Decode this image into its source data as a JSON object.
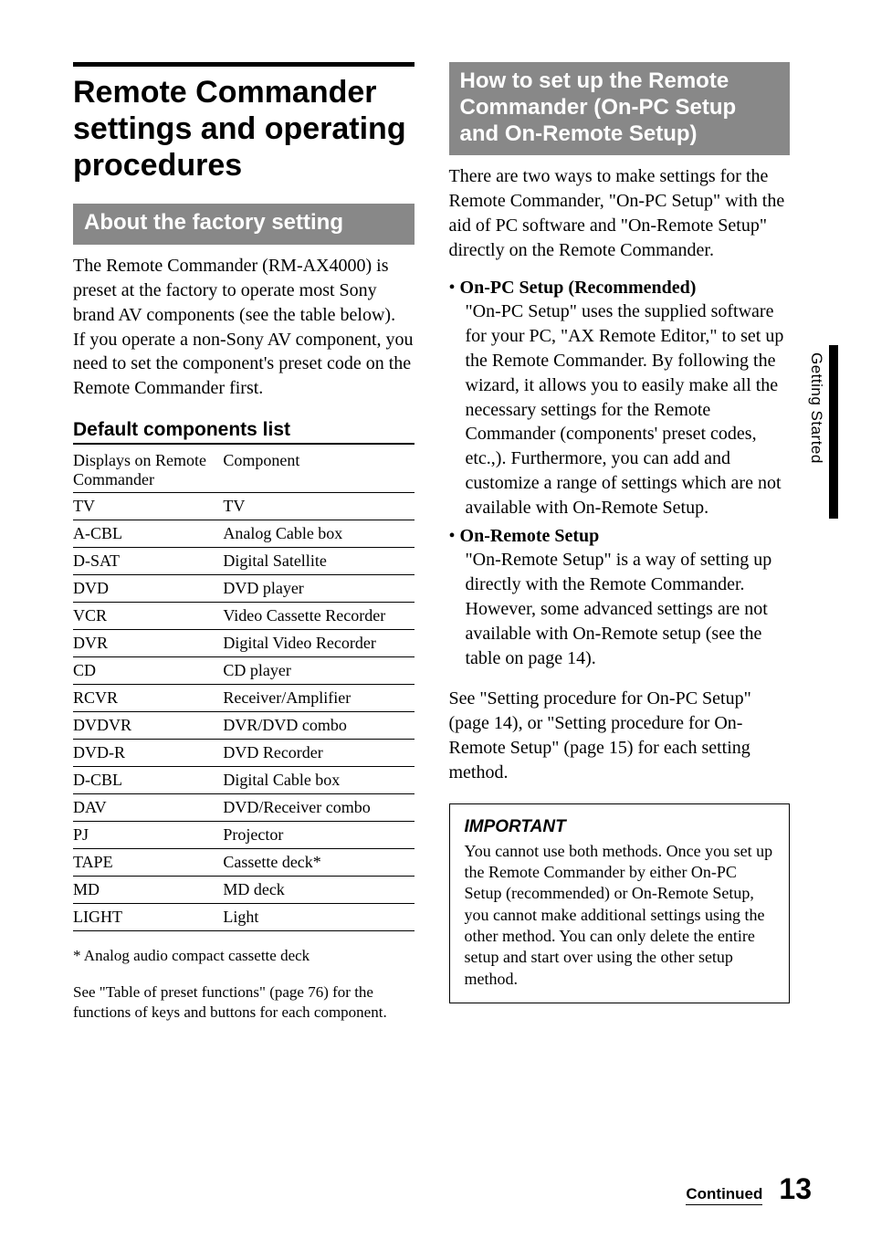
{
  "left": {
    "main_title": "Remote Commander settings and operating procedures",
    "factory_heading": "About the factory setting",
    "factory_body": "The Remote Commander (RM-AX4000) is preset at the factory to operate most Sony brand AV components (see the table below).\nIf you operate a non-Sony AV component, you need to set the component's preset code on the Remote Commander first.",
    "default_list_heading": "Default components list",
    "table_header_left": "Displays on Remote Commander",
    "table_header_right": "Component",
    "rows": [
      [
        "TV",
        "TV"
      ],
      [
        "A-CBL",
        "Analog Cable box"
      ],
      [
        "D-SAT",
        "Digital Satellite"
      ],
      [
        "DVD",
        "DVD player"
      ],
      [
        "VCR",
        "Video Cassette Recorder"
      ],
      [
        "DVR",
        "Digital Video Recorder"
      ],
      [
        "CD",
        "CD player"
      ],
      [
        "RCVR",
        "Receiver/Amplifier"
      ],
      [
        "DVDVR",
        "DVR/DVD combo"
      ],
      [
        "DVD-R",
        "DVD Recorder"
      ],
      [
        "D-CBL",
        "Digital Cable box"
      ],
      [
        "DAV",
        "DVD/Receiver combo"
      ],
      [
        "PJ",
        "Projector"
      ],
      [
        "TAPE",
        "Cassette deck*"
      ],
      [
        "MD",
        "MD deck"
      ],
      [
        "LIGHT",
        "Light"
      ]
    ],
    "footnote1": "* Analog audio compact cassette deck",
    "footnote2": "See \"Table of preset functions\" (page 76) for the functions of keys and buttons for each component."
  },
  "right": {
    "setup_heading": "How to set up the Remote Commander (On-PC Setup and On-Remote Setup)",
    "intro": "There are two ways to make settings for the Remote Commander, \"On-PC Setup\" with the aid of PC software and \"On-Remote Setup\" directly on the Remote Commander.",
    "bullet1_lead": "On-PC Setup (Recommended)",
    "bullet1_body": "\"On-PC Setup\" uses the supplied software for your PC, \"AX Remote Editor,\" to set up the Remote Commander. By following the wizard, it allows you to easily make all the necessary settings for the Remote Commander (components' preset codes, etc.,). Furthermore, you can add and customize a range of settings which are not available with On-Remote Setup.",
    "bullet2_lead": "On-Remote Setup",
    "bullet2_body": "\"On-Remote Setup\" is a way of setting up directly with the Remote Commander. However, some advanced settings are not available with On-Remote setup (see the table on page 14).",
    "see_text": "See \"Setting procedure for On-PC Setup\" (page 14), or \"Setting procedure for On-Remote Setup\" (page 15) for each setting method.",
    "important_title": "IMPORTANT",
    "important_body": "You cannot use both methods. Once you set up the Remote Commander by either On-PC Setup (recommended) or On-Remote Setup, you cannot make additional settings using the other method. You can only delete the entire setup and start over using the other setup method."
  },
  "side_tab": "Getting Started",
  "continued": "Continued",
  "page_number": "13"
}
